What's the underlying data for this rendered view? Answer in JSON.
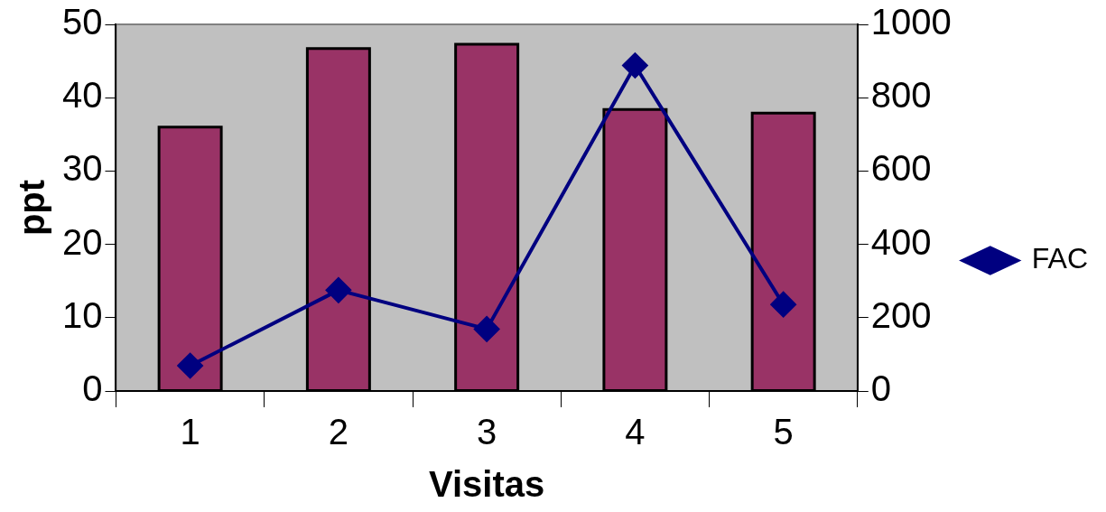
{
  "chart_data": {
    "type": "bar",
    "xlabel": "Visitas",
    "ylabel": "ppt",
    "categories": [
      "1",
      "2",
      "3",
      "4",
      "5"
    ],
    "series": [
      {
        "color": "#993366",
        "values": [
          36,
          46.7,
          47.3,
          38.4,
          37.9
        ]
      },
      {
        "type": "line",
        "name": "FAC",
        "axis": "y2",
        "color": "#000080",
        "values": [
          69,
          275,
          169,
          888,
          236
        ]
      }
    ],
    "ylim": [
      0,
      50
    ],
    "yticks": [
      0,
      10,
      20,
      30,
      40,
      50
    ],
    "y2lim": [
      0,
      1000
    ],
    "y2ticks": [
      0,
      200,
      400,
      600,
      800,
      1000
    ],
    "legend": "right",
    "marker": "diamond",
    "grid": false
  }
}
